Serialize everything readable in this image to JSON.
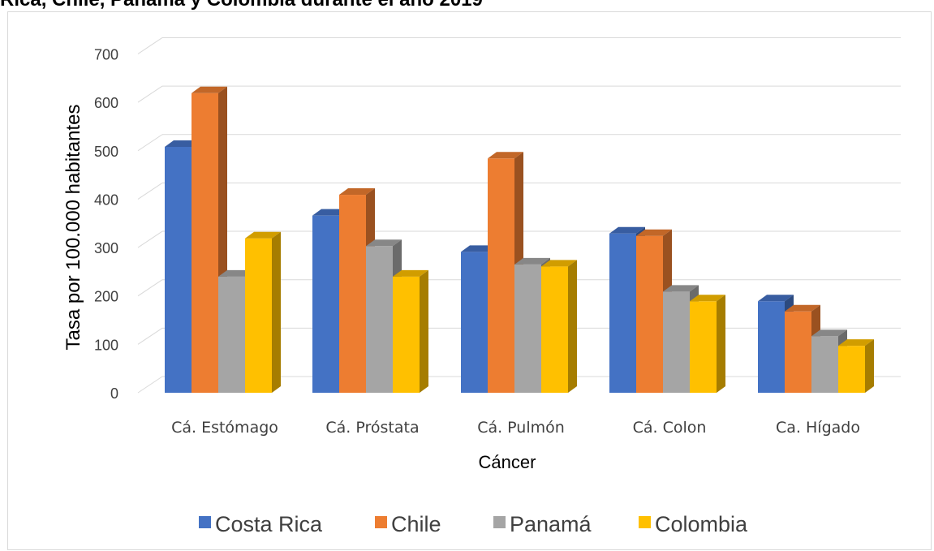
{
  "chart_data": {
    "type": "bar",
    "title": "Rica, Chile, Panamá y Colombia durante el año 2019",
    "xlabel": "Cáncer",
    "ylabel": "Tasa por 100.000 habitantes",
    "ylim": [
      0,
      700
    ],
    "yticks": [
      "0",
      "100",
      "200",
      "300",
      "400",
      "500",
      "600",
      "700"
    ],
    "grid": true,
    "legend_position": "bottom",
    "categories": [
      "Cá. Estómago",
      "Cá. Próstata",
      "Cá. Pulmón",
      "Cá. Colon",
      "Ca. Hígado"
    ],
    "series": [
      {
        "name": "Costa Rica",
        "color": "#4472C4",
        "values": [
          508,
          366,
          291,
          329,
          189
        ]
      },
      {
        "name": "Chile",
        "color": "#ED7D31",
        "values": [
          619,
          409,
          484,
          324,
          168
        ]
      },
      {
        "name": "Panamá",
        "color": "#A5A5A5",
        "values": [
          240,
          303,
          265,
          209,
          117
        ]
      },
      {
        "name": "Colombia",
        "color": "#FFC000",
        "values": [
          319,
          240,
          261,
          189,
          97
        ]
      }
    ]
  }
}
